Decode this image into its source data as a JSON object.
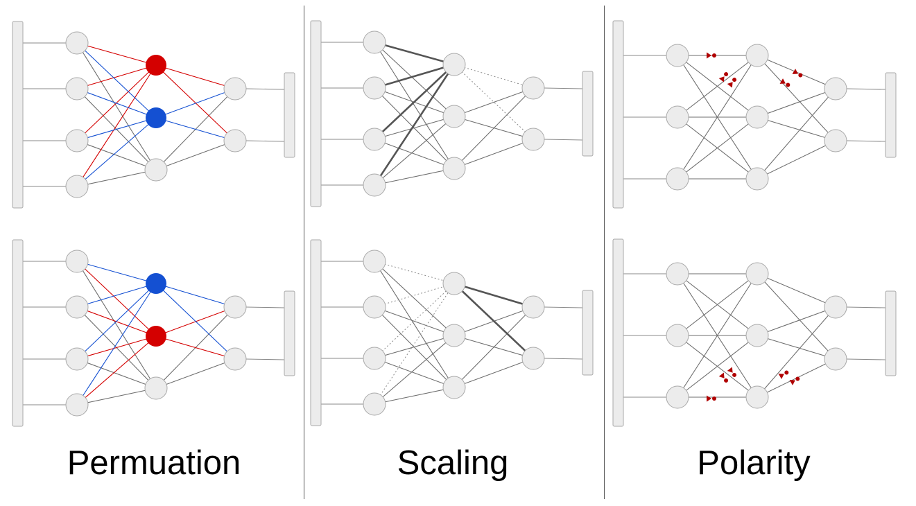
{
  "panels": [
    {
      "id": "permutation",
      "label": "Permuation"
    },
    {
      "id": "scaling",
      "label": "Scaling"
    },
    {
      "id": "polarity",
      "label": "Polarity"
    }
  ],
  "colors": {
    "node_fill": "#ececec",
    "node_stroke": "#a9a9a9",
    "edge": "#6e6e6e",
    "edge_strong": "#555555",
    "red": "#d40000",
    "blue": "#1450d2",
    "sign_marker": "#b00000",
    "input_bar": "#ececec"
  },
  "icons": {
    "sign_marker": "arrow-dot-icon"
  }
}
